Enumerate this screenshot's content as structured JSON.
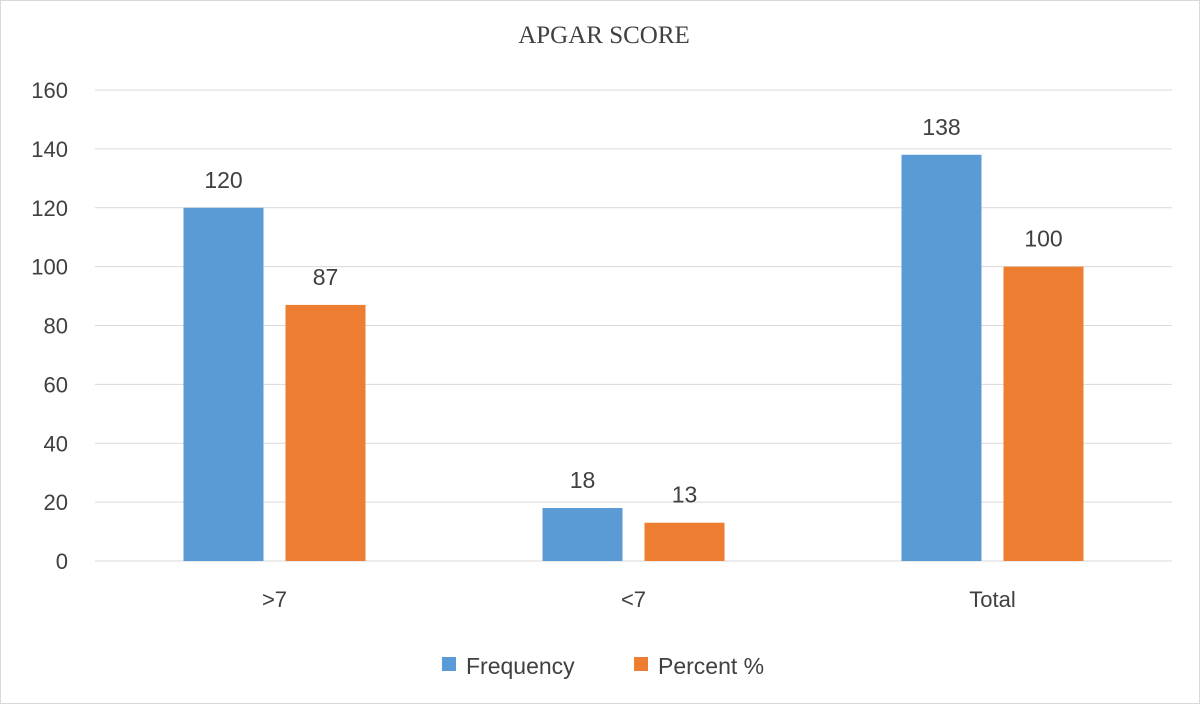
{
  "chart_data": {
    "type": "bar",
    "title": "APGAR SCORE",
    "categories": [
      ">7",
      "<7",
      "Total"
    ],
    "series": [
      {
        "name": "Frequency",
        "values": [
          120,
          18,
          138
        ],
        "color": "#5b9bd5"
      },
      {
        "name": "Percent %",
        "values": [
          87,
          13,
          100
        ],
        "color": "#ed7d31"
      }
    ],
    "ylim": [
      0,
      160
    ],
    "yticks": [
      0,
      20,
      40,
      60,
      80,
      100,
      120,
      140,
      160
    ],
    "grid": true,
    "legend_position": "bottom"
  }
}
